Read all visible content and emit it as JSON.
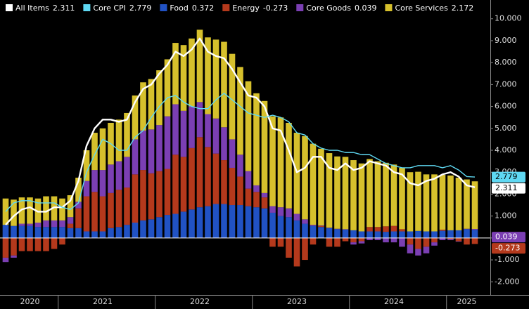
{
  "chart_data": {
    "type": "bar",
    "stacked": true,
    "categories": [
      null,
      null,
      null,
      "2020",
      null,
      null,
      null,
      null,
      null,
      null,
      null,
      null,
      "2021",
      null,
      null,
      null,
      null,
      null,
      null,
      null,
      null,
      null,
      null,
      null,
      "2022",
      null,
      null,
      null,
      null,
      null,
      null,
      null,
      null,
      null,
      null,
      null,
      "2023",
      null,
      null,
      null,
      null,
      null,
      null,
      null,
      null,
      null,
      null,
      null,
      "2024",
      null,
      null,
      null,
      null,
      null,
      null,
      null,
      null,
      "2025",
      null
    ],
    "ylim": [
      -2.6,
      10.6
    ],
    "yticks": [
      {
        "value": -2,
        "label": "-2.000"
      },
      {
        "value": -1,
        "label": "-1.000"
      },
      {
        "value": 0,
        "label": "0.000"
      },
      {
        "value": 1,
        "label": "1.000"
      },
      {
        "value": 2,
        "label": "2.000"
      },
      {
        "value": 3,
        "label": "3.000"
      },
      {
        "value": 4,
        "label": "4.000"
      },
      {
        "value": 5,
        "label": "5.000"
      },
      {
        "value": 6,
        "label": "6.000"
      },
      {
        "value": 7,
        "label": "7.000"
      },
      {
        "value": 8,
        "label": "8.000"
      },
      {
        "value": 9,
        "label": "9.000"
      },
      {
        "value": 10,
        "label": "10.000"
      }
    ],
    "series": [
      {
        "name": "All Items",
        "type": "line",
        "color": "#ffffff",
        "label_last": true,
        "values": [
          0.6,
          1.0,
          1.3,
          1.4,
          1.2,
          1.2,
          1.4,
          1.4,
          1.7,
          2.6,
          4.2,
          5.0,
          5.4,
          5.4,
          5.3,
          5.4,
          6.2,
          6.8,
          7.0,
          7.5,
          7.9,
          8.5,
          8.3,
          8.6,
          9.1,
          8.5,
          8.3,
          8.2,
          7.7,
          7.1,
          6.5,
          6.4,
          6.0,
          5.0,
          4.9,
          4.0,
          3.0,
          3.2,
          3.7,
          3.7,
          3.2,
          3.1,
          3.4,
          3.1,
          3.2,
          3.5,
          3.4,
          3.3,
          3.0,
          2.9,
          2.5,
          2.4,
          2.6,
          2.7,
          2.9,
          3.0,
          2.8,
          2.4,
          2.311
        ]
      },
      {
        "name": "Core CPI",
        "type": "line",
        "color": "#5fd8f2",
        "label_last": true,
        "values": [
          1.2,
          1.6,
          1.7,
          1.7,
          1.6,
          1.6,
          1.6,
          1.4,
          1.3,
          1.6,
          3.0,
          3.8,
          4.5,
          4.3,
          4.0,
          4.0,
          4.6,
          4.9,
          5.5,
          6.0,
          6.4,
          6.5,
          6.2,
          6.0,
          5.9,
          5.9,
          6.3,
          6.6,
          6.3,
          6.0,
          5.7,
          5.6,
          5.5,
          5.6,
          5.5,
          5.3,
          4.8,
          4.7,
          4.3,
          4.1,
          4.0,
          4.0,
          3.9,
          3.9,
          3.8,
          3.8,
          3.6,
          3.4,
          3.3,
          3.2,
          3.2,
          3.3,
          3.3,
          3.3,
          3.2,
          3.3,
          3.1,
          2.8,
          2.779
        ]
      },
      {
        "name": "Food",
        "type": "bar",
        "color": "#2152c4",
        "values": [
          0.6,
          0.55,
          0.55,
          0.55,
          0.5,
          0.5,
          0.5,
          0.5,
          0.45,
          0.45,
          0.3,
          0.3,
          0.3,
          0.45,
          0.5,
          0.6,
          0.7,
          0.8,
          0.85,
          0.95,
          1.05,
          1.1,
          1.2,
          1.3,
          1.4,
          1.45,
          1.55,
          1.55,
          1.5,
          1.5,
          1.45,
          1.4,
          1.35,
          1.15,
          1.0,
          0.95,
          0.8,
          0.65,
          0.55,
          0.5,
          0.45,
          0.4,
          0.38,
          0.35,
          0.3,
          0.3,
          0.3,
          0.28,
          0.3,
          0.3,
          0.3,
          0.32,
          0.3,
          0.3,
          0.33,
          0.35,
          0.35,
          0.4,
          0.372
        ]
      },
      {
        "name": "Energy",
        "type": "bar",
        "color": "#b4391c",
        "label_last": true,
        "values": [
          -0.9,
          -0.8,
          -0.6,
          -0.6,
          -0.6,
          -0.6,
          -0.5,
          -0.3,
          0.2,
          0.9,
          1.6,
          1.8,
          1.6,
          1.6,
          1.7,
          1.7,
          2.2,
          2.3,
          2.1,
          2.1,
          2.1,
          2.7,
          2.5,
          2.8,
          3.2,
          2.7,
          2.3,
          2.0,
          1.7,
          1.3,
          0.8,
          0.7,
          0.5,
          -0.4,
          -0.4,
          -0.9,
          -1.3,
          -1.0,
          -0.3,
          0.05,
          -0.4,
          -0.4,
          -0.15,
          -0.2,
          -0.15,
          0.2,
          0.2,
          0.25,
          0.25,
          0.1,
          -0.3,
          -0.5,
          -0.4,
          -0.2,
          0.05,
          -0.05,
          -0.15,
          -0.3,
          -0.273
        ]
      },
      {
        "name": "Core Goods",
        "type": "bar",
        "color": "#7b3fb3",
        "label_last": true,
        "values": [
          -0.2,
          -0.1,
          0.1,
          0.1,
          0.2,
          0.3,
          0.3,
          0.3,
          0.3,
          0.3,
          0.7,
          1.0,
          1.2,
          1.3,
          1.3,
          1.4,
          1.6,
          1.8,
          2.0,
          2.1,
          2.4,
          2.3,
          2.1,
          1.9,
          1.6,
          1.5,
          1.6,
          1.5,
          1.3,
          1.0,
          0.8,
          0.3,
          0.2,
          0.3,
          0.4,
          0.4,
          0.3,
          0.2,
          0.05,
          0.02,
          0.02,
          0.02,
          0.02,
          -0.1,
          -0.1,
          -0.1,
          -0.1,
          -0.2,
          -0.2,
          -0.4,
          -0.4,
          -0.3,
          -0.3,
          -0.15,
          -0.1,
          -0.05,
          -0.02,
          0.02,
          0.039
        ]
      },
      {
        "name": "Core Services",
        "type": "bar",
        "color": "#d6c02c",
        "values": [
          1.2,
          1.2,
          1.2,
          1.2,
          1.1,
          1.1,
          1.1,
          1.0,
          1.0,
          1.1,
          1.4,
          1.7,
          1.9,
          1.9,
          1.9,
          2.0,
          2.0,
          2.2,
          2.3,
          2.5,
          2.6,
          2.8,
          3.0,
          3.1,
          3.3,
          3.5,
          3.6,
          3.9,
          3.9,
          4.0,
          4.1,
          4.2,
          4.2,
          4.1,
          4.1,
          3.9,
          3.7,
          3.8,
          3.7,
          3.5,
          3.4,
          3.3,
          3.3,
          3.2,
          3.1,
          3.1,
          3.0,
          2.9,
          2.8,
          2.8,
          2.7,
          2.7,
          2.6,
          2.6,
          2.5,
          2.5,
          2.4,
          2.25,
          2.172
        ]
      }
    ]
  }
}
